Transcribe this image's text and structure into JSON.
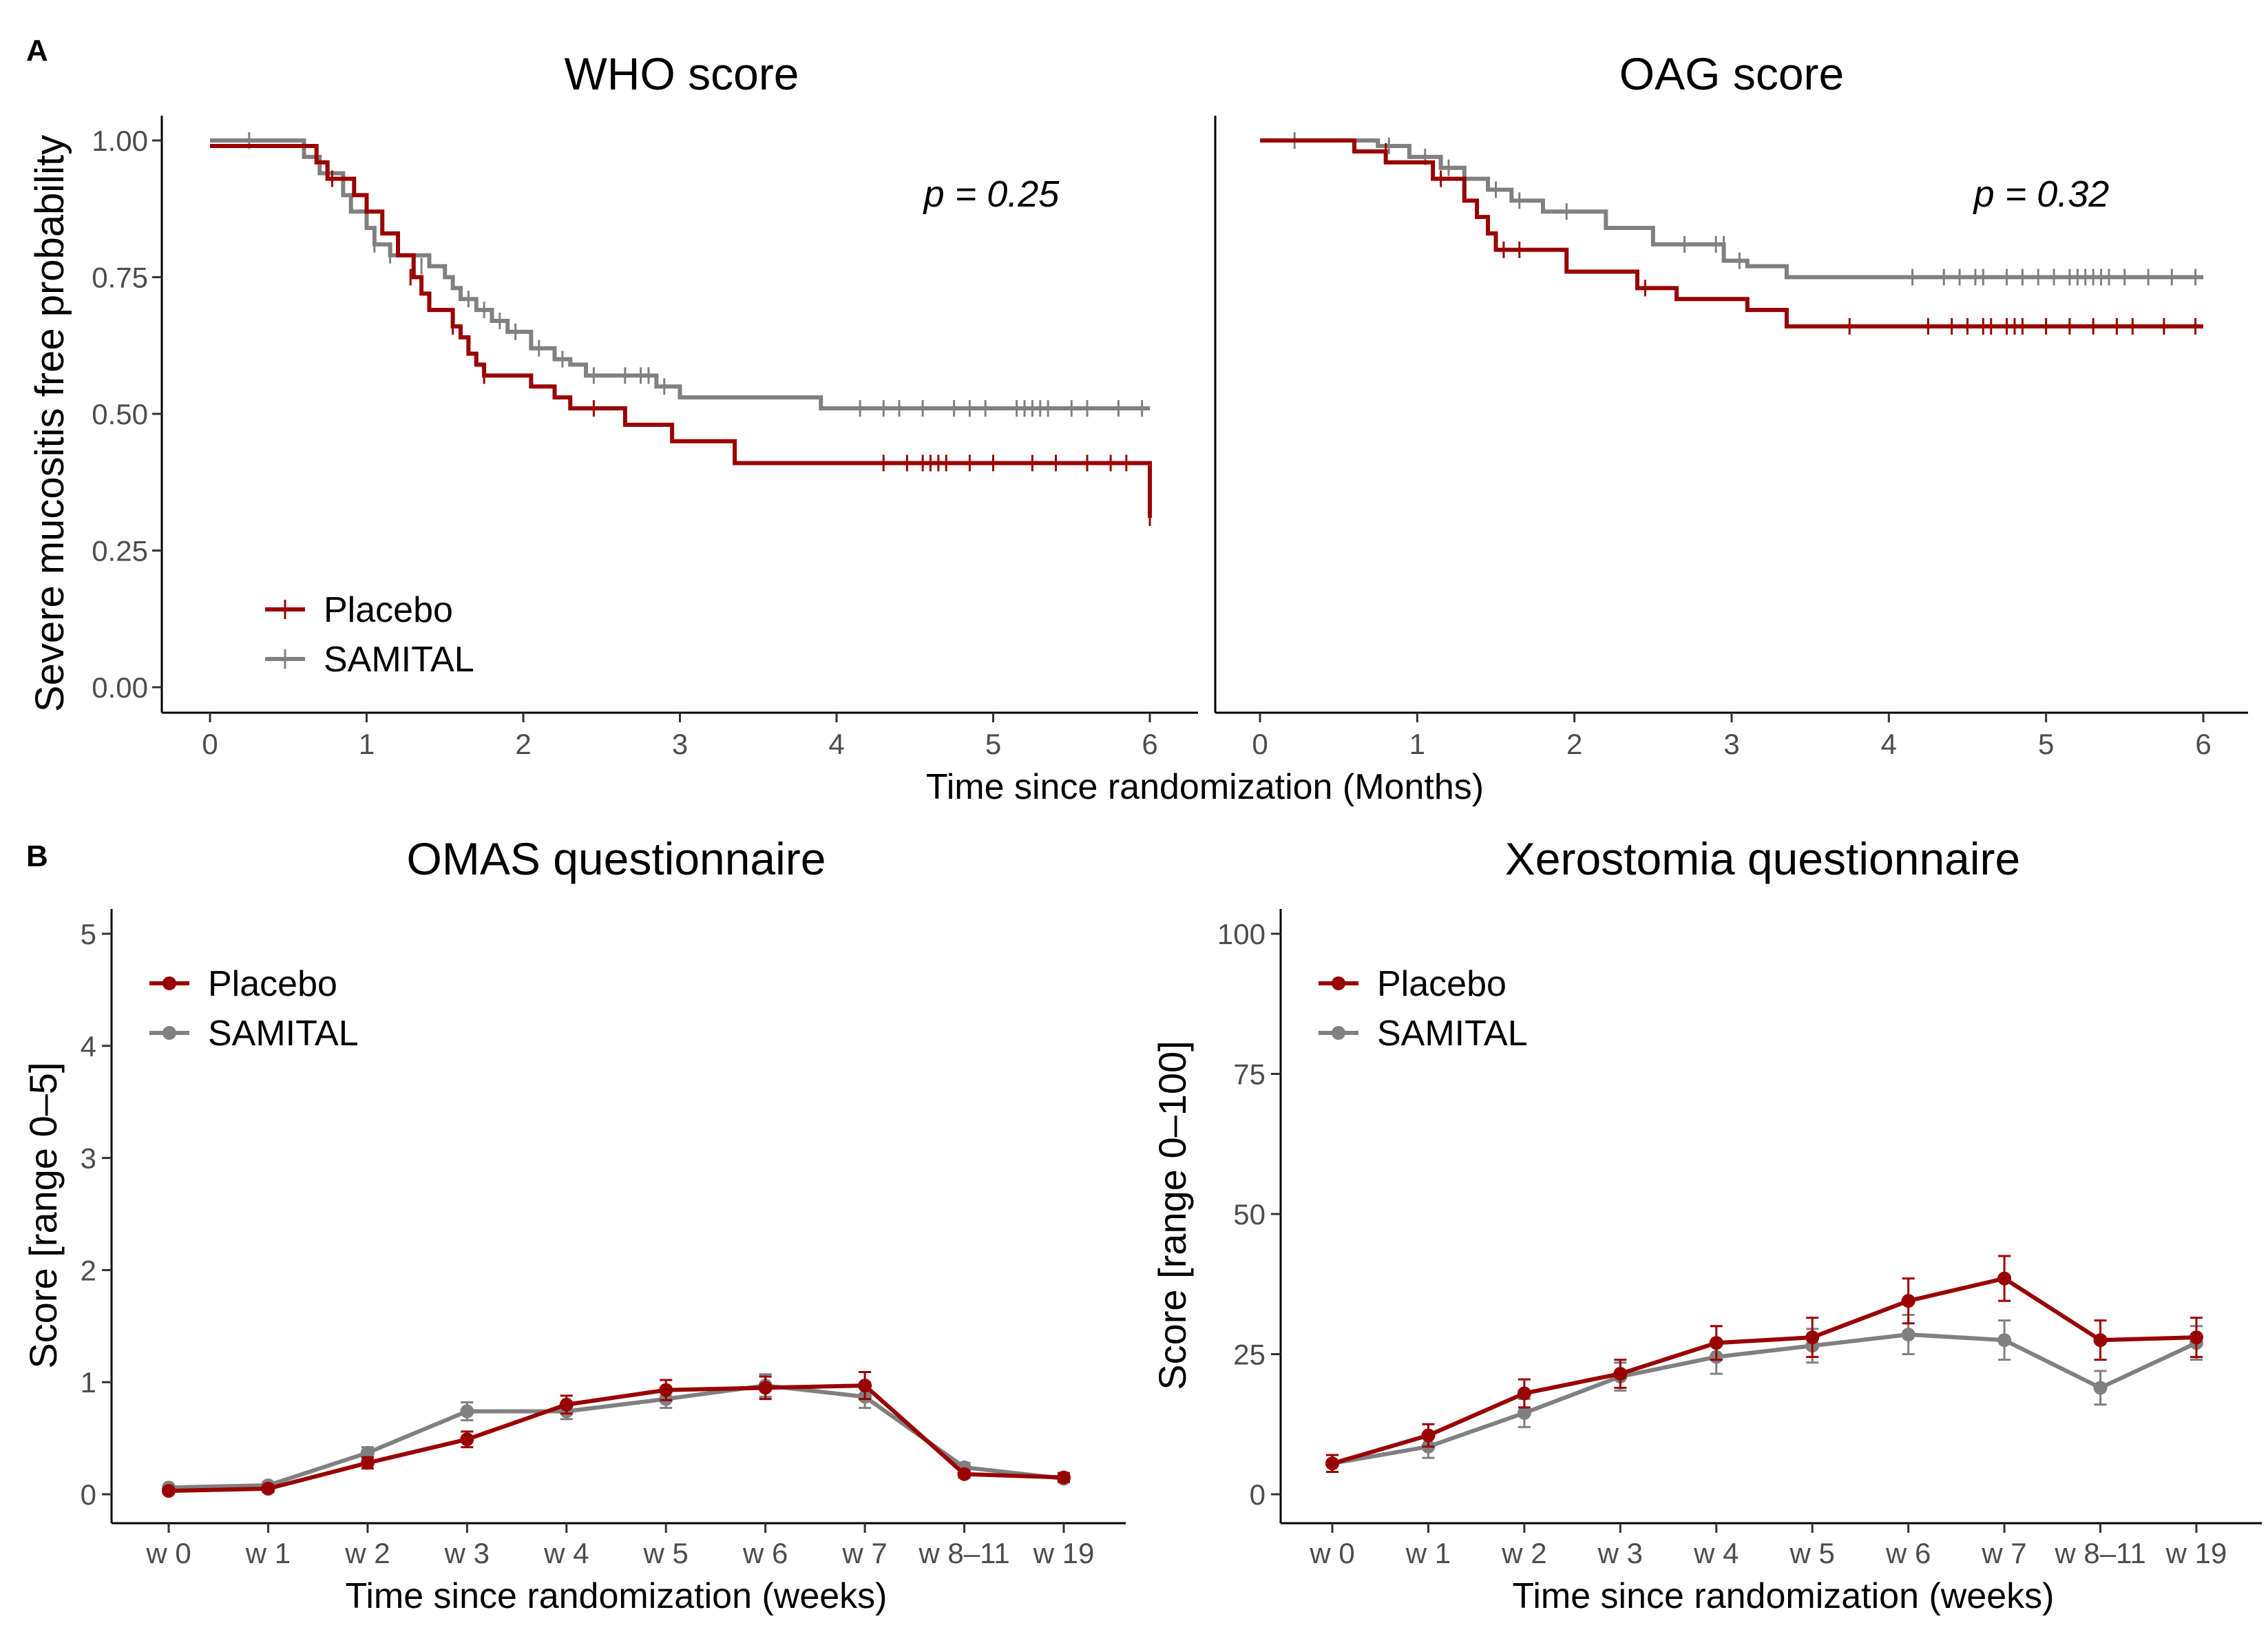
{
  "figure": {
    "panel_a_label": "A",
    "panel_b_label": "B",
    "shared_xlabel_a": "Time since randomization (Months)",
    "shared_ylabel_a": "Severe mucositis free probability"
  },
  "colors": {
    "placebo": "#990000",
    "samital": "#808080",
    "axis": "#000000",
    "tick_text": "#4d4d4d"
  },
  "chart_data": [
    {
      "id": "who",
      "type": "line",
      "subtype": "kaplan-meier",
      "title": "WHO score",
      "xlabel": "Time since randomization (Months)",
      "ylabel": "Severe mucositis free probability",
      "xlim": [
        0,
        6
      ],
      "ylim": [
        0,
        1
      ],
      "xticks": [
        "0",
        "1",
        "2",
        "3",
        "4",
        "5",
        "6"
      ],
      "yticks": [
        "0.00",
        "0.25",
        "0.50",
        "0.75",
        "1.00"
      ],
      "annotation": "p = 0.25",
      "legend": {
        "position": "bottom-left",
        "entries": [
          "Placebo",
          "SAMITAL"
        ]
      },
      "series": [
        {
          "name": "Placebo",
          "color": "#990000",
          "steps": [
            [
              0,
              0.99
            ],
            [
              0.68,
              0.96
            ],
            [
              0.75,
              0.93
            ],
            [
              0.92,
              0.9
            ],
            [
              1.0,
              0.87
            ],
            [
              1.1,
              0.83
            ],
            [
              1.2,
              0.79
            ],
            [
              1.3,
              0.75
            ],
            [
              1.35,
              0.72
            ],
            [
              1.4,
              0.69
            ],
            [
              1.55,
              0.66
            ],
            [
              1.6,
              0.64
            ],
            [
              1.65,
              0.61
            ],
            [
              1.7,
              0.59
            ],
            [
              1.75,
              0.57
            ],
            [
              2.05,
              0.55
            ],
            [
              2.2,
              0.53
            ],
            [
              2.3,
              0.51
            ],
            [
              2.65,
              0.48
            ],
            [
              2.95,
              0.45
            ],
            [
              3.35,
              0.41
            ],
            [
              6.0,
              0.31
            ]
          ],
          "censored": [
            [
              0.78,
              0.93
            ],
            [
              1.28,
              0.75
            ],
            [
              1.55,
              0.66
            ],
            [
              1.75,
              0.57
            ],
            [
              2.45,
              0.51
            ],
            [
              4.3,
              0.41
            ],
            [
              4.45,
              0.41
            ],
            [
              4.55,
              0.41
            ],
            [
              4.6,
              0.41
            ],
            [
              4.65,
              0.41
            ],
            [
              4.7,
              0.41
            ],
            [
              4.85,
              0.41
            ],
            [
              5.0,
              0.41
            ],
            [
              5.25,
              0.41
            ],
            [
              5.4,
              0.41
            ],
            [
              5.6,
              0.41
            ],
            [
              5.75,
              0.41
            ],
            [
              5.85,
              0.41
            ],
            [
              6.0,
              0.31
            ]
          ]
        },
        {
          "name": "SAMITAL",
          "color": "#808080",
          "steps": [
            [
              0,
              1.0
            ],
            [
              0.6,
              0.97
            ],
            [
              0.7,
              0.94
            ],
            [
              0.85,
              0.9
            ],
            [
              0.9,
              0.87
            ],
            [
              1.0,
              0.84
            ],
            [
              1.05,
              0.81
            ],
            [
              1.15,
              0.79
            ],
            [
              1.4,
              0.77
            ],
            [
              1.5,
              0.75
            ],
            [
              1.55,
              0.73
            ],
            [
              1.6,
              0.71
            ],
            [
              1.7,
              0.69
            ],
            [
              1.8,
              0.67
            ],
            [
              1.9,
              0.65
            ],
            [
              2.05,
              0.62
            ],
            [
              2.2,
              0.6
            ],
            [
              2.3,
              0.59
            ],
            [
              2.4,
              0.57
            ],
            [
              2.85,
              0.55
            ],
            [
              3.0,
              0.53
            ],
            [
              3.9,
              0.51
            ]
          ],
          "censored": [
            [
              0.25,
              1.0
            ],
            [
              1.05,
              0.81
            ],
            [
              1.15,
              0.79
            ],
            [
              1.35,
              0.77
            ],
            [
              1.65,
              0.71
            ],
            [
              1.75,
              0.69
            ],
            [
              1.85,
              0.67
            ],
            [
              1.95,
              0.65
            ],
            [
              2.1,
              0.62
            ],
            [
              2.25,
              0.6
            ],
            [
              2.45,
              0.57
            ],
            [
              2.65,
              0.57
            ],
            [
              2.75,
              0.57
            ],
            [
              2.8,
              0.57
            ],
            [
              2.9,
              0.55
            ],
            [
              4.15,
              0.51
            ],
            [
              4.3,
              0.51
            ],
            [
              4.4,
              0.51
            ],
            [
              4.55,
              0.51
            ],
            [
              4.75,
              0.51
            ],
            [
              4.85,
              0.51
            ],
            [
              4.95,
              0.51
            ],
            [
              5.15,
              0.51
            ],
            [
              5.2,
              0.51
            ],
            [
              5.25,
              0.51
            ],
            [
              5.3,
              0.51
            ],
            [
              5.35,
              0.51
            ],
            [
              5.5,
              0.51
            ],
            [
              5.6,
              0.51
            ],
            [
              5.8,
              0.51
            ],
            [
              5.95,
              0.51
            ]
          ]
        }
      ]
    },
    {
      "id": "oag",
      "type": "line",
      "subtype": "kaplan-meier",
      "title": "OAG score",
      "xlabel": "Time since randomization (Months)",
      "ylabel": "",
      "xlim": [
        0,
        6
      ],
      "ylim": [
        0,
        1
      ],
      "xticks": [
        "0",
        "1",
        "2",
        "3",
        "4",
        "5",
        "6"
      ],
      "yticks": [],
      "annotation": "p = 0.32",
      "legend": null,
      "series": [
        {
          "name": "Placebo",
          "color": "#990000",
          "steps": [
            [
              0,
              1.0
            ],
            [
              0.6,
              0.98
            ],
            [
              0.8,
              0.96
            ],
            [
              1.1,
              0.93
            ],
            [
              1.3,
              0.89
            ],
            [
              1.38,
              0.86
            ],
            [
              1.45,
              0.83
            ],
            [
              1.5,
              0.8
            ],
            [
              1.95,
              0.76
            ],
            [
              2.4,
              0.73
            ],
            [
              2.65,
              0.71
            ],
            [
              3.1,
              0.69
            ],
            [
              3.35,
              0.66
            ],
            [
              6.0,
              0.66
            ]
          ],
          "censored": [
            [
              0.8,
              0.98
            ],
            [
              1.15,
              0.93
            ],
            [
              1.55,
              0.8
            ],
            [
              1.65,
              0.8
            ],
            [
              2.45,
              0.73
            ],
            [
              3.75,
              0.66
            ],
            [
              4.25,
              0.66
            ],
            [
              4.4,
              0.66
            ],
            [
              4.5,
              0.66
            ],
            [
              4.6,
              0.66
            ],
            [
              4.65,
              0.66
            ],
            [
              4.75,
              0.66
            ],
            [
              4.8,
              0.66
            ],
            [
              4.85,
              0.66
            ],
            [
              5.0,
              0.66
            ],
            [
              5.15,
              0.66
            ],
            [
              5.3,
              0.66
            ],
            [
              5.45,
              0.66
            ],
            [
              5.55,
              0.66
            ],
            [
              5.75,
              0.66
            ],
            [
              5.95,
              0.66
            ]
          ]
        },
        {
          "name": "SAMITAL",
          "color": "#808080",
          "steps": [
            [
              0,
              1.0
            ],
            [
              0.75,
              0.99
            ],
            [
              0.95,
              0.97
            ],
            [
              1.15,
              0.95
            ],
            [
              1.3,
              0.93
            ],
            [
              1.45,
              0.91
            ],
            [
              1.6,
              0.89
            ],
            [
              1.8,
              0.87
            ],
            [
              2.2,
              0.84
            ],
            [
              2.5,
              0.81
            ],
            [
              2.95,
              0.78
            ],
            [
              3.1,
              0.77
            ],
            [
              3.35,
              0.75
            ],
            [
              6.0,
              0.75
            ]
          ],
          "censored": [
            [
              0.22,
              1.0
            ],
            [
              0.82,
              0.99
            ],
            [
              1.05,
              0.97
            ],
            [
              1.2,
              0.95
            ],
            [
              1.5,
              0.91
            ],
            [
              1.65,
              0.89
            ],
            [
              1.95,
              0.87
            ],
            [
              2.7,
              0.81
            ],
            [
              2.9,
              0.81
            ],
            [
              2.95,
              0.81
            ],
            [
              3.05,
              0.78
            ],
            [
              4.15,
              0.75
            ],
            [
              4.35,
              0.75
            ],
            [
              4.45,
              0.75
            ],
            [
              4.55,
              0.75
            ],
            [
              4.6,
              0.75
            ],
            [
              4.75,
              0.75
            ],
            [
              4.85,
              0.75
            ],
            [
              4.95,
              0.75
            ],
            [
              5.05,
              0.75
            ],
            [
              5.15,
              0.75
            ],
            [
              5.2,
              0.75
            ],
            [
              5.25,
              0.75
            ],
            [
              5.3,
              0.75
            ],
            [
              5.35,
              0.75
            ],
            [
              5.4,
              0.75
            ],
            [
              5.5,
              0.75
            ],
            [
              5.65,
              0.75
            ],
            [
              5.8,
              0.75
            ],
            [
              5.95,
              0.75
            ]
          ]
        }
      ]
    },
    {
      "id": "omas",
      "type": "line",
      "title": "OMAS questionnaire",
      "xlabel": "Time since randomization (weeks)",
      "ylabel": "Score [range 0–5]",
      "categories": [
        "w 0",
        "w 1",
        "w 2",
        "w 3",
        "w 4",
        "w 5",
        "w 6",
        "w 7",
        "w 8–11",
        "w 19"
      ],
      "ylim": [
        0,
        5
      ],
      "yticks": [
        "0",
        "1",
        "2",
        "3",
        "4",
        "5"
      ],
      "legend": {
        "position": "top-left",
        "entries": [
          "Placebo",
          "SAMITAL"
        ]
      },
      "series": [
        {
          "name": "Placebo",
          "color": "#990000",
          "values": [
            0.03,
            0.05,
            0.28,
            0.49,
            0.8,
            0.93,
            0.95,
            0.97,
            0.18,
            0.15
          ],
          "errors": [
            0.02,
            0.03,
            0.05,
            0.07,
            0.08,
            0.09,
            0.1,
            0.12,
            0.03,
            0.04
          ]
        },
        {
          "name": "SAMITAL",
          "color": "#808080",
          "values": [
            0.06,
            0.08,
            0.37,
            0.74,
            0.74,
            0.85,
            0.97,
            0.87,
            0.24,
            0.14
          ],
          "errors": [
            0.02,
            0.03,
            0.05,
            0.08,
            0.07,
            0.08,
            0.1,
            0.1,
            0.04,
            0.03
          ]
        }
      ]
    },
    {
      "id": "xero",
      "type": "line",
      "title": "Xerostomia questionnaire",
      "xlabel": "Time since randomization (weeks)",
      "ylabel": "Score [range 0–100]",
      "categories": [
        "w 0",
        "w 1",
        "w 2",
        "w 3",
        "w 4",
        "w 5",
        "w 6",
        "w 7",
        "w 8–11",
        "w 19"
      ],
      "ylim": [
        0,
        100
      ],
      "yticks": [
        "0",
        "25",
        "50",
        "75",
        "100"
      ],
      "legend": {
        "position": "top-left",
        "entries": [
          "Placebo",
          "SAMITAL"
        ]
      },
      "series": [
        {
          "name": "Placebo",
          "color": "#990000",
          "values": [
            5.5,
            10.5,
            18,
            21.5,
            27,
            28,
            34.5,
            38.5,
            27.5,
            28
          ],
          "errors": [
            1.5,
            2,
            2.5,
            2.5,
            3,
            3.5,
            4,
            4,
            3.5,
            3.5
          ]
        },
        {
          "name": "SAMITAL",
          "color": "#808080",
          "values": [
            5.5,
            8.5,
            14.5,
            21,
            24.5,
            26.5,
            28.5,
            27.5,
            19,
            27
          ],
          "errors": [
            1.5,
            2,
            2.5,
            2.5,
            3,
            3,
            3.5,
            3.5,
            3,
            3
          ]
        }
      ]
    }
  ]
}
